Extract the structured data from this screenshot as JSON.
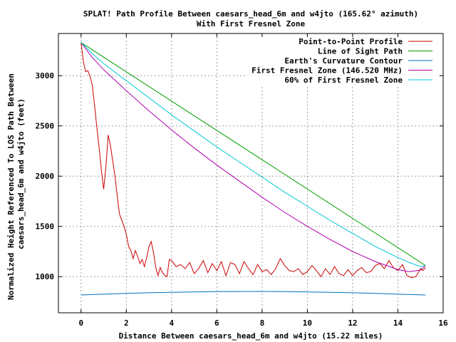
{
  "chart_data": {
    "type": "line",
    "title": "SPLAT! Path Profile Between caesars_head_6m and w4jto (165.62° azimuth)",
    "subtitle": "With First Fresnel Zone",
    "xlabel": "Distance Between caesars_head_6m and w4jto (15.22 miles)",
    "ylabel_lines": [
      "Normalized Height Referenced To LOS Path Between",
      "caesars_head_6m and w4jto (feet)"
    ],
    "xlim": [
      -1,
      16
    ],
    "ylim": [
      640,
      3420
    ],
    "xticks": [
      0,
      2,
      4,
      6,
      8,
      10,
      12,
      14,
      16
    ],
    "yticks": [
      1000,
      1500,
      2000,
      2500,
      3000
    ],
    "grid": true,
    "legend_position": "top-right",
    "series": [
      {
        "name": "Point-to-Point Profile",
        "color": "#cc0000",
        "x": [
          0,
          0.1,
          0.2,
          0.3,
          0.4,
          0.5,
          0.6,
          0.7,
          0.8,
          0.9,
          1.0,
          1.1,
          1.2,
          1.3,
          1.4,
          1.5,
          1.6,
          1.7,
          1.8,
          1.9,
          2.0,
          2.1,
          2.2,
          2.3,
          2.4,
          2.5,
          2.6,
          2.7,
          2.8,
          2.9,
          3.0,
          3.1,
          3.2,
          3.3,
          3.4,
          3.5,
          3.6,
          3.7,
          3.8,
          3.9,
          4.0,
          4.2,
          4.4,
          4.6,
          4.8,
          5.0,
          5.2,
          5.4,
          5.6,
          5.8,
          6.0,
          6.2,
          6.4,
          6.6,
          6.8,
          7.0,
          7.2,
          7.4,
          7.6,
          7.8,
          8.0,
          8.2,
          8.4,
          8.6,
          8.8,
          9.0,
          9.2,
          9.4,
          9.6,
          9.8,
          10.0,
          10.2,
          10.4,
          10.6,
          10.8,
          11.0,
          11.2,
          11.4,
          11.6,
          11.8,
          12.0,
          12.2,
          12.4,
          12.6,
          12.8,
          13.0,
          13.2,
          13.4,
          13.6,
          13.8,
          14.0,
          14.2,
          14.4,
          14.6,
          14.8,
          15.0,
          15.1,
          15.22
        ],
        "y": [
          3330,
          3150,
          3040,
          3050,
          2990,
          2900,
          2700,
          2480,
          2280,
          2050,
          1870,
          2100,
          2410,
          2300,
          2150,
          2000,
          1800,
          1620,
          1560,
          1500,
          1420,
          1300,
          1260,
          1180,
          1260,
          1200,
          1130,
          1170,
          1100,
          1190,
          1300,
          1350,
          1240,
          1090,
          1010,
          1090,
          1040,
          1010,
          1000,
          1170,
          1160,
          1100,
          1120,
          1080,
          1140,
          1030,
          1080,
          1160,
          1040,
          1130,
          1060,
          1150,
          1010,
          1140,
          1120,
          1030,
          1150,
          1080,
          1020,
          1120,
          1050,
          1070,
          1020,
          1080,
          1180,
          1110,
          1060,
          1050,
          1080,
          1020,
          1050,
          1110,
          1060,
          1000,
          1080,
          1020,
          1100,
          1030,
          1010,
          1070,
          1010,
          1060,
          1090,
          1040,
          1050,
          1110,
          1130,
          1080,
          1160,
          1090,
          1060,
          1120,
          1010,
          990,
          1000,
          1080,
          1060,
          1090
        ]
      },
      {
        "name": "Line of Sight Path",
        "color": "#00a000",
        "x": [
          0,
          15.22
        ],
        "y": [
          3330,
          1110
        ]
      },
      {
        "name": "Earth's Curvature Contour",
        "color": "#0070c0",
        "x": [
          0,
          1,
          2,
          3,
          4,
          5,
          6,
          7,
          8,
          9,
          10,
          11,
          12,
          13,
          14,
          15.22
        ],
        "y": [
          817,
          825,
          833,
          839,
          844,
          848,
          851,
          852,
          852,
          851,
          848,
          844,
          839,
          833,
          825,
          817
        ]
      },
      {
        "name": "First Fresnel Zone (146.520 MHz)",
        "color": "#b000b0",
        "x": [
          0,
          0.5,
          1,
          2,
          3,
          4,
          5,
          6,
          7,
          8,
          9,
          10,
          11,
          12,
          13,
          14,
          14.5,
          15,
          15.22
        ],
        "y": [
          3330,
          3180,
          3060,
          2850,
          2650,
          2460,
          2280,
          2110,
          1950,
          1790,
          1640,
          1500,
          1370,
          1250,
          1150,
          1070,
          1050,
          1065,
          1110
        ]
      },
      {
        "name": "60% of First Fresnel Zone",
        "color": "#00c8d8",
        "x": [
          0,
          0.5,
          1,
          2,
          3,
          4,
          5,
          6,
          7,
          8,
          9,
          10,
          11,
          12,
          13,
          14,
          14.5,
          15,
          15.22
        ],
        "y": [
          3330,
          3220,
          3120,
          2950,
          2780,
          2610,
          2450,
          2290,
          2140,
          1990,
          1840,
          1700,
          1560,
          1430,
          1300,
          1190,
          1140,
          1100,
          1110
        ]
      }
    ]
  }
}
